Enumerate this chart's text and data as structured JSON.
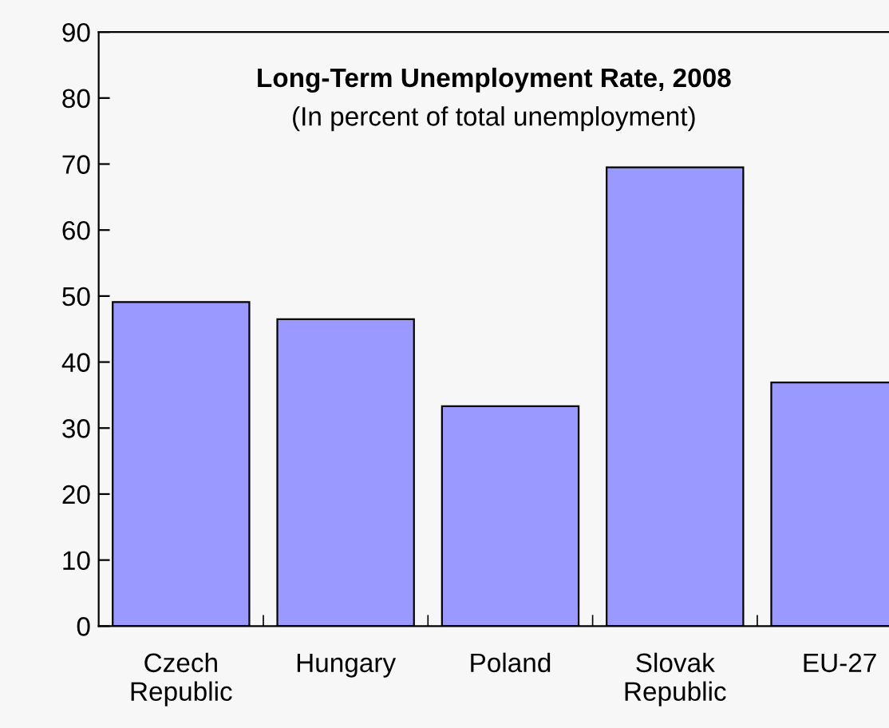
{
  "chart_data": {
    "type": "bar",
    "title": "Long-Term Unemployment Rate, 2008",
    "subtitle": "(In percent of total unemployment)",
    "categories": [
      "Czech\nRepublic",
      "Hungary",
      "Poland",
      "Slovak\nRepublic",
      "EU-27"
    ],
    "values": [
      49.1,
      46.5,
      33.3,
      69.5,
      36.9
    ],
    "color": "#9999ff",
    "ylim": [
      0,
      90
    ],
    "yticks": [
      0,
      10,
      20,
      30,
      40,
      50,
      60,
      70,
      80,
      90
    ],
    "grid": false
  }
}
